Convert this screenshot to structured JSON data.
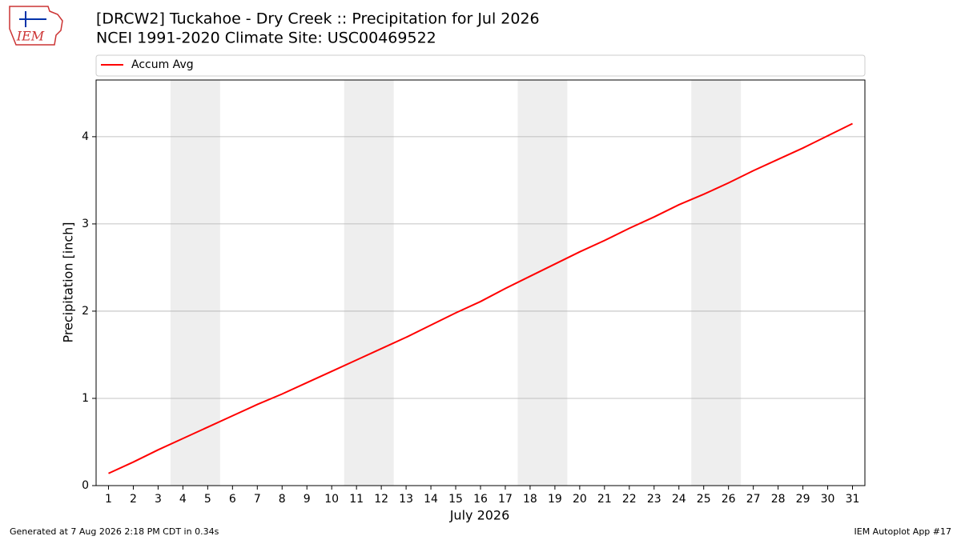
{
  "logo_text": "IEM",
  "footer": {
    "left": "Generated at 7 Aug 2026 2:18 PM CDT in 0.34s",
    "right": "IEM Autoplot App #17"
  },
  "chart_data": {
    "type": "line",
    "title": "[DRCW2] Tuckahoe - Dry Creek :: Precipitation for Jul 2026",
    "subtitle": "NCEI 1991-2020 Climate Site: USC00469522",
    "xlabel": "July 2026",
    "ylabel": "Precipitation [inch]",
    "x": [
      1,
      2,
      3,
      4,
      5,
      6,
      7,
      8,
      9,
      10,
      11,
      12,
      13,
      14,
      15,
      16,
      17,
      18,
      19,
      20,
      21,
      22,
      23,
      24,
      25,
      26,
      27,
      28,
      29,
      30,
      31
    ],
    "series": [
      {
        "name": "Accum Avg",
        "color": "#ff0000",
        "values": [
          0.14,
          0.27,
          0.41,
          0.54,
          0.67,
          0.8,
          0.93,
          1.05,
          1.18,
          1.31,
          1.44,
          1.57,
          1.7,
          1.84,
          1.98,
          2.11,
          2.26,
          2.4,
          2.54,
          2.68,
          2.81,
          2.95,
          3.08,
          3.22,
          3.34,
          3.47,
          3.61,
          3.74,
          3.87,
          4.01,
          4.15
        ]
      }
    ],
    "xlim": [
      0.5,
      31.5
    ],
    "ylim": [
      0,
      4.65
    ],
    "xticks": [
      1,
      2,
      3,
      4,
      5,
      6,
      7,
      8,
      9,
      10,
      11,
      12,
      13,
      14,
      15,
      16,
      17,
      18,
      19,
      20,
      21,
      22,
      23,
      24,
      25,
      26,
      27,
      28,
      29,
      30,
      31
    ],
    "yticks": [
      0,
      1,
      2,
      3,
      4
    ],
    "grid": "y",
    "legend": "top",
    "shaded_spans": [
      [
        3.5,
        5.5
      ],
      [
        10.5,
        12.5
      ],
      [
        17.5,
        19.5
      ],
      [
        24.5,
        26.5
      ]
    ],
    "shade_color": "#eeeeee"
  }
}
